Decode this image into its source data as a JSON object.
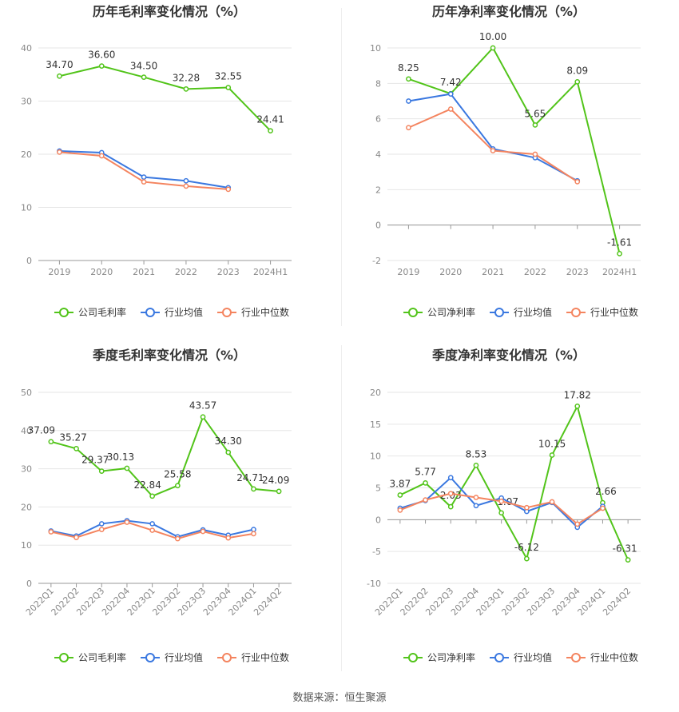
{
  "footer": "数据来源：恒生聚源",
  "legend_names": [
    "公司毛利率",
    "行业均值",
    "行业中位数"
  ],
  "chart_data": [
    {
      "type": "line",
      "title": "历年毛利率变化情况（%）",
      "categories": [
        "2019",
        "2020",
        "2021",
        "2022",
        "2023",
        "2024H1"
      ],
      "ylim": [
        0,
        40
      ],
      "yticks": [
        "0",
        "10",
        "20",
        "30",
        "40"
      ],
      "grid": true,
      "legend_position": "bottom",
      "series": [
        {
          "name": "公司毛利率",
          "color": "#52c41a",
          "values": [
            34.7,
            36.6,
            34.5,
            32.28,
            32.55,
            24.41
          ],
          "labels": [
            "34.70",
            "36.60",
            "34.50",
            "32.28",
            "32.55",
            "24.41"
          ]
        },
        {
          "name": "行业均值",
          "color": "#3a78e0",
          "values": [
            20.6,
            20.3,
            15.7,
            15.0,
            13.7,
            null
          ]
        },
        {
          "name": "行业中位数",
          "color": "#f4845f",
          "values": [
            20.4,
            19.7,
            14.8,
            14.0,
            13.4,
            null
          ]
        }
      ]
    },
    {
      "type": "line",
      "title": "历年净利率变化情况（%）",
      "categories": [
        "2019",
        "2020",
        "2021",
        "2022",
        "2023",
        "2024H1"
      ],
      "ylim": [
        -2,
        10
      ],
      "yticks": [
        "-2",
        "0",
        "2",
        "4",
        "6",
        "8",
        "10"
      ],
      "grid": true,
      "legend_position": "bottom",
      "series": [
        {
          "name": "公司净利率",
          "color": "#52c41a",
          "values": [
            8.25,
            7.42,
            10.0,
            5.65,
            8.09,
            -1.61
          ],
          "labels": [
            "8.25",
            "7.42",
            "10.00",
            "5.65",
            "8.09",
            "-1.61"
          ]
        },
        {
          "name": "行业均值",
          "color": "#3a78e0",
          "values": [
            7.0,
            7.4,
            4.3,
            3.8,
            2.5,
            null
          ]
        },
        {
          "name": "行业中位数",
          "color": "#f4845f",
          "values": [
            5.5,
            6.55,
            4.2,
            4.0,
            2.45,
            null
          ]
        }
      ]
    },
    {
      "type": "line",
      "title": "季度毛利率变化情况（%）",
      "categories": [
        "2022Q1",
        "2022Q2",
        "2022Q3",
        "2022Q4",
        "2023Q1",
        "2023Q2",
        "2023Q3",
        "2023Q4",
        "2024Q1",
        "2024Q2"
      ],
      "ylim": [
        0,
        50
      ],
      "yticks": [
        "0",
        "10",
        "20",
        "30",
        "40",
        "50"
      ],
      "grid": true,
      "legend_position": "bottom",
      "series": [
        {
          "name": "公司毛利率",
          "color": "#52c41a",
          "values": [
            37.09,
            35.27,
            29.37,
            30.13,
            22.84,
            25.58,
            43.57,
            34.3,
            24.71,
            24.09
          ],
          "labels": [
            "37.09",
            "35.27",
            "29.37",
            "30.13",
            "22.84",
            "25.58",
            "43.57",
            "34.30",
            "24.71",
            "24.09"
          ]
        },
        {
          "name": "行业均值",
          "color": "#3a78e0",
          "values": [
            13.7,
            12.4,
            15.6,
            16.4,
            15.6,
            12.2,
            14.0,
            12.6,
            14.1,
            null
          ]
        },
        {
          "name": "行业中位数",
          "color": "#f4845f",
          "values": [
            13.5,
            12.0,
            14.1,
            16.0,
            13.9,
            11.7,
            13.6,
            11.9,
            13.0,
            null
          ]
        }
      ]
    },
    {
      "type": "line",
      "title": "季度净利率变化情况（%）",
      "categories": [
        "2022Q1",
        "2022Q2",
        "2022Q3",
        "2022Q4",
        "2023Q1",
        "2023Q2",
        "2023Q3",
        "2023Q4",
        "2024Q1",
        "2024Q2"
      ],
      "ylim": [
        -10,
        20
      ],
      "yticks": [
        "-10",
        "-5",
        "0",
        "5",
        "10",
        "15",
        "20"
      ],
      "grid": true,
      "legend_position": "bottom",
      "series": [
        {
          "name": "公司净利率",
          "color": "#52c41a",
          "values": [
            3.87,
            5.77,
            2.03,
            8.53,
            1.07,
            -6.12,
            10.15,
            17.82,
            2.66,
            -6.31
          ],
          "labels": [
            "3.87",
            "5.77",
            "2.03",
            "8.53",
            "1.07",
            "-6.12",
            "10.15",
            "17.82",
            "2.66",
            "-6.31"
          ]
        },
        {
          "name": "行业均值",
          "color": "#3a78e0",
          "values": [
            1.8,
            3.0,
            6.6,
            2.2,
            3.4,
            1.3,
            2.7,
            -1.2,
            2.1,
            null
          ]
        },
        {
          "name": "行业中位数",
          "color": "#f4845f",
          "values": [
            1.5,
            3.1,
            4.1,
            3.5,
            2.9,
            1.9,
            2.8,
            -0.7,
            1.8,
            null
          ]
        }
      ]
    }
  ]
}
